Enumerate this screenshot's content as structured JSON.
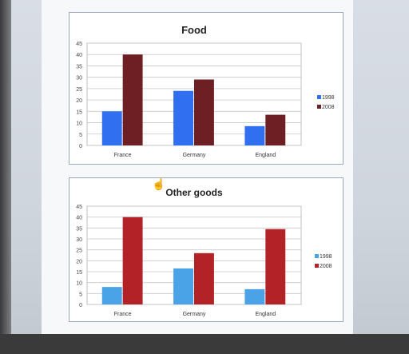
{
  "chart_data": [
    {
      "type": "bar",
      "title": "Food",
      "categories": [
        "France",
        "Germany",
        "England"
      ],
      "series": [
        {
          "name": "1998",
          "values": [
            15,
            24,
            8.5
          ]
        },
        {
          "name": "2008",
          "values": [
            40,
            29,
            13.5
          ]
        }
      ],
      "ylim": [
        0,
        45
      ],
      "yticks": [
        "0",
        "5",
        "10",
        "15",
        "20",
        "25",
        "30",
        "35",
        "40",
        "45"
      ],
      "grid": true,
      "legend_position": "right"
    },
    {
      "type": "bar",
      "title": "Other goods",
      "categories": [
        "France",
        "Germany",
        "England"
      ],
      "series": [
        {
          "name": "1998",
          "values": [
            8,
            16.5,
            7
          ]
        },
        {
          "name": "2008",
          "values": [
            40,
            23.5,
            34.5
          ]
        }
      ],
      "ylim": [
        0,
        45
      ],
      "yticks": [
        "0",
        "5",
        "10",
        "15",
        "20",
        "25",
        "30",
        "35",
        "40",
        "45"
      ],
      "grid": true,
      "legend_position": "right"
    }
  ],
  "colors": {
    "food_1998": "#2f6ff0",
    "food_2008": "#6e1f24",
    "other_1998": "#4aa3e6",
    "other_2008": "#b32226"
  },
  "icons": {
    "cursor": "hand-cursor-icon"
  }
}
